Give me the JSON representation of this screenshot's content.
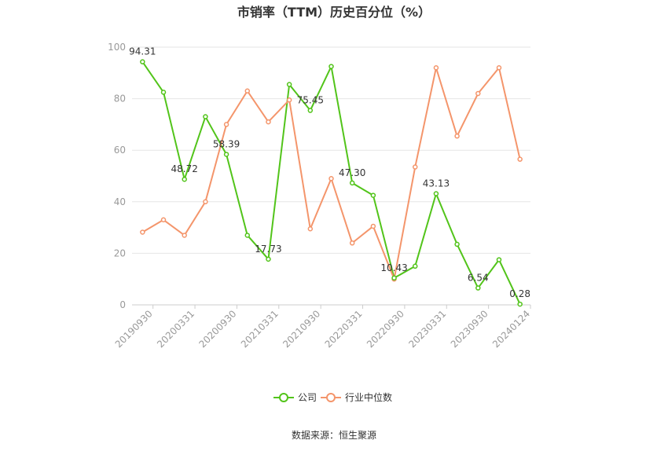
{
  "chart_data": {
    "type": "line",
    "title": "市销率（TTM）历史百分位（%）",
    "xlabel": "",
    "ylabel": "",
    "ylim": [
      0,
      100
    ],
    "yticks": [
      0,
      20,
      40,
      60,
      80,
      100
    ],
    "x_tick_labels": [
      "20190930",
      "20200331",
      "20200930",
      "20210331",
      "20210930",
      "20220331",
      "20220930",
      "20230331",
      "20230930",
      "20240124"
    ],
    "series": [
      {
        "name": "公司",
        "color": "#52c41a",
        "values": [
          94.31,
          82.5,
          48.72,
          73.0,
          58.39,
          27.0,
          17.73,
          85.5,
          75.45,
          92.5,
          47.3,
          42.5,
          10.43,
          15.0,
          43.13,
          23.5,
          6.54,
          17.5,
          0.28
        ],
        "labels": [
          "94.31",
          "",
          "48.72",
          "",
          "58.39",
          "",
          "17.73",
          "",
          "75.45",
          "",
          "47.30",
          "",
          "10.43",
          "",
          "43.13",
          "",
          "6.54",
          "",
          "0.28"
        ]
      },
      {
        "name": "行业中位数",
        "color": "#f4956b",
        "values": [
          28.2,
          33.0,
          27.0,
          40.0,
          70.0,
          83.0,
          71.0,
          79.5,
          29.5,
          49.0,
          24.0,
          30.5,
          10.0,
          53.5,
          92.0,
          65.5,
          82.0,
          92.0,
          56.5
        ]
      }
    ],
    "legend_position": "bottom-center",
    "grid": true
  },
  "source": "数据来源：恒生聚源"
}
